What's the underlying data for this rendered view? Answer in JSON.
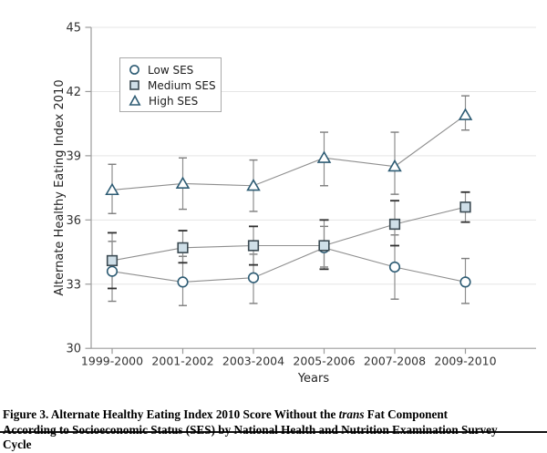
{
  "figure": {
    "caption": {
      "part1": "Figure 3. Alternate Healthy Eating Index 2010 Score Without the ",
      "italic": "trans",
      "part2": " Fat Component",
      "line2": "According to Socioeconomic Status (SES) by National Health and Nutrition Examination Survey",
      "line3": "Cycle"
    }
  },
  "chart_data": {
    "type": "line",
    "title": "",
    "xlabel": "Years",
    "ylabel": "Alternate Healthy Eating Index 2010",
    "ylim": [
      30,
      45
    ],
    "yticks": [
      30,
      33,
      36,
      39,
      42,
      45
    ],
    "grid": true,
    "legend_position": "top-left-inside",
    "categories": [
      "1999-2000",
      "2001-2002",
      "2003-2004",
      "2005-2006",
      "2007-2008",
      "2009-2010"
    ],
    "series": [
      {
        "name": "Low SES",
        "marker": "circle",
        "values": [
          33.6,
          33.1,
          33.3,
          34.7,
          33.8,
          33.1
        ],
        "ci_low": [
          32.2,
          32.0,
          32.1,
          33.8,
          32.3,
          32.1
        ],
        "ci_high": [
          35.0,
          34.3,
          34.4,
          35.7,
          35.3,
          34.2
        ]
      },
      {
        "name": "Medium SES",
        "marker": "square",
        "values": [
          34.1,
          34.7,
          34.8,
          34.8,
          35.8,
          36.6
        ],
        "ci_low": [
          32.8,
          34.0,
          33.9,
          33.7,
          34.8,
          35.9
        ],
        "ci_high": [
          35.4,
          35.5,
          35.7,
          36.0,
          36.9,
          37.3
        ]
      },
      {
        "name": "High SES",
        "marker": "triangle",
        "values": [
          37.4,
          37.7,
          37.6,
          38.9,
          38.5,
          40.9
        ],
        "ci_low": [
          36.3,
          36.5,
          36.4,
          37.6,
          37.2,
          40.2
        ],
        "ci_high": [
          38.6,
          38.9,
          38.8,
          40.1,
          40.1,
          41.8
        ]
      }
    ],
    "colors": {
      "marker_stroke": "#2e5c74",
      "square_stroke": "#3b4a52",
      "square_fill": "#cfdfe8",
      "series_line": "#8e8e8e",
      "error_line": "#8e8e8e",
      "error_cap_dark": "#2f2f2f",
      "error_cap_gray": "#7d7d7d",
      "grid": "#e5e5e5",
      "axis": "#9b9b9b",
      "tick_label": "#333333",
      "axis_title": "#222222"
    }
  }
}
